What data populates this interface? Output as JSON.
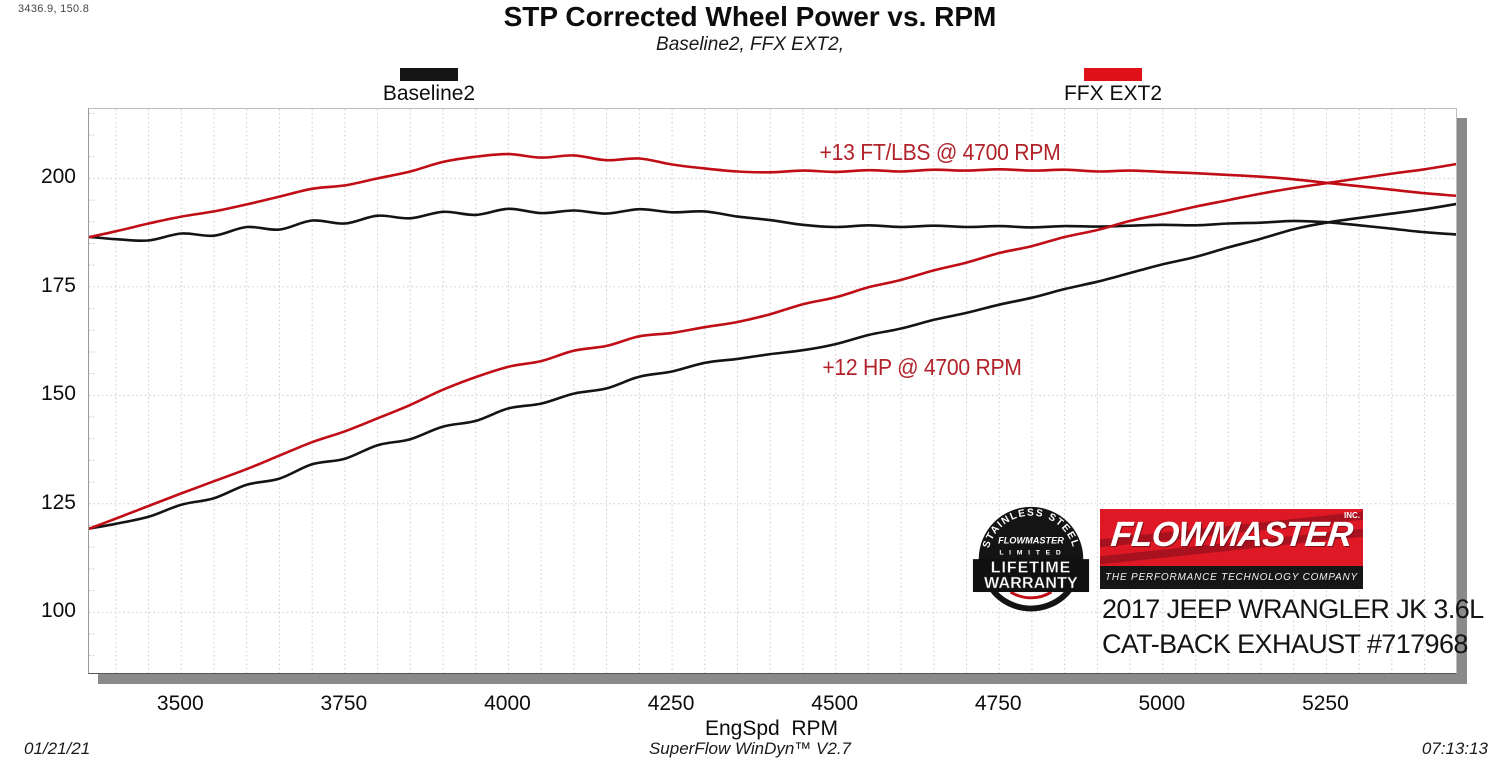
{
  "cursor_readout": "3436.9, 150.8",
  "header": {
    "title": "STP Corrected Wheel Power vs. RPM",
    "subtitle": "Baseline2, FFX EXT2,"
  },
  "legend": [
    {
      "label": "Baseline2",
      "color": "#141414"
    },
    {
      "label": "FFX EXT2",
      "color": "#e01119"
    }
  ],
  "annotations": {
    "torque_gain": "+13 FT/LBS @ 4700 RPM",
    "power_gain": "+12 HP @ 4700 RPM",
    "color": "#b2222a"
  },
  "branding": {
    "badge": {
      "arc_top": "STAINLESS STEEL",
      "brand": "FLOWMASTER",
      "limited": "L I M I T E D",
      "line1": "LIFETIME",
      "line2": "WARRANTY"
    },
    "logo": {
      "name": "FLOWMASTER",
      "inc": "INC.",
      "tagline": "THE PERFORMANCE TECHNOLOGY COMPANY"
    },
    "vehicle_line1": "2017 JEEP WRANGLER JK 3.6L",
    "vehicle_line2": "CAT-BACK EXHAUST #717968"
  },
  "footer": {
    "date": "01/21/21",
    "software": "SuperFlow WinDyn™ V2.7",
    "time": "07:13:13"
  },
  "chart_data": {
    "type": "line",
    "title": "STP Corrected Wheel Power vs. RPM",
    "subtitle": "Baseline2, FFX EXT2,",
    "xlabel": "EngSpd  RPM",
    "ylabel": "",
    "xlim": [
      3359,
      5448
    ],
    "ylim": [
      86,
      216
    ],
    "x_ticks": [
      3500,
      3750,
      4000,
      4250,
      4500,
      4750,
      5000,
      5250
    ],
    "y_ticks": [
      100,
      125,
      150,
      175,
      200
    ],
    "grid": "light dotted; minor vertical every 50 RPM; minor y tick marks every 5 on left edge",
    "legend_position": "top, outside plot",
    "x": [
      3360,
      3400,
      3450,
      3500,
      3550,
      3600,
      3650,
      3700,
      3750,
      3800,
      3850,
      3900,
      3950,
      4000,
      4050,
      4100,
      4150,
      4200,
      4250,
      4300,
      4350,
      4400,
      4450,
      4500,
      4550,
      4600,
      4650,
      4700,
      4750,
      4800,
      4850,
      4900,
      4950,
      5000,
      5050,
      5100,
      5150,
      5200,
      5250,
      5300,
      5350,
      5400,
      5448
    ],
    "series": [
      {
        "name": "Baseline2 torque (ft-lbs)",
        "color": "#141414",
        "values": [
          186.5,
          186.0,
          185.7,
          187.3,
          186.8,
          188.8,
          188.2,
          190.3,
          189.6,
          191.4,
          190.8,
          192.3,
          191.6,
          193.0,
          192.0,
          192.6,
          191.9,
          192.9,
          192.2,
          192.4,
          191.2,
          190.4,
          189.3,
          188.8,
          189.2,
          188.8,
          189.1,
          188.8,
          189.0,
          188.7,
          189.0,
          188.9,
          189.1,
          189.3,
          189.2,
          189.6,
          189.8,
          190.2,
          189.9,
          189.2,
          188.4,
          187.6,
          187.1
        ]
      },
      {
        "name": "FFX EXT2 torque (ft-lbs)",
        "color": "#c00d16",
        "values": [
          186.5,
          187.8,
          189.6,
          191.2,
          192.4,
          194.0,
          195.8,
          197.6,
          198.4,
          200.0,
          201.6,
          203.8,
          205.0,
          205.6,
          204.8,
          205.3,
          204.2,
          204.6,
          203.2,
          202.3,
          201.6,
          201.4,
          201.8,
          201.5,
          201.9,
          201.6,
          202.0,
          201.8,
          202.1,
          201.8,
          202.0,
          201.6,
          201.8,
          201.5,
          201.2,
          200.8,
          200.4,
          199.8,
          199.0,
          198.2,
          197.4,
          196.6,
          196.0
        ]
      },
      {
        "name": "Baseline2 power (hp)",
        "color": "#141414",
        "values": [
          119.3,
          120.4,
          122.0,
          124.8,
          126.3,
          129.4,
          130.8,
          134.1,
          135.4,
          138.5,
          139.9,
          142.8,
          144.1,
          147.0,
          148.1,
          150.4,
          151.6,
          154.3,
          155.5,
          157.5,
          158.4,
          159.5,
          160.4,
          161.8,
          163.9,
          165.4,
          167.4,
          169.0,
          170.9,
          172.5,
          174.5,
          176.2,
          178.2,
          180.2,
          181.9,
          184.1,
          186.1,
          188.3,
          189.8,
          190.9,
          191.9,
          192.9,
          194.1
        ]
      },
      {
        "name": "FFX EXT2 power (hp)",
        "color": "#c00d16",
        "values": [
          119.3,
          121.6,
          124.5,
          127.4,
          130.2,
          133.0,
          136.1,
          139.2,
          141.7,
          144.7,
          147.8,
          151.3,
          154.2,
          156.6,
          157.9,
          160.3,
          161.4,
          163.6,
          164.4,
          165.7,
          166.9,
          168.7,
          171.0,
          172.6,
          174.9,
          176.6,
          178.8,
          180.6,
          182.8,
          184.4,
          186.5,
          188.1,
          190.2,
          191.8,
          193.5,
          195.0,
          196.5,
          197.8,
          198.9,
          200.0,
          201.1,
          202.1,
          203.3
        ]
      }
    ]
  }
}
